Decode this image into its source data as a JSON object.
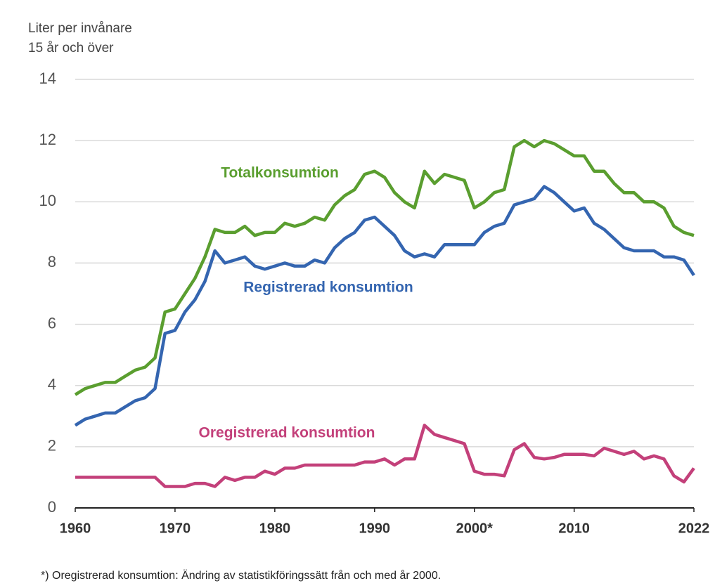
{
  "chart_data": {
    "type": "line",
    "y_label_lines": [
      "Liter per invånare",
      "15 år och över"
    ],
    "footnote": "*) Oregistrerad konsumtion: Ändring av statistikföringssätt från och med år 2000.",
    "x": [
      1960,
      1961,
      1962,
      1963,
      1964,
      1965,
      1966,
      1967,
      1968,
      1969,
      1970,
      1971,
      1972,
      1973,
      1974,
      1975,
      1976,
      1977,
      1978,
      1979,
      1980,
      1981,
      1982,
      1983,
      1984,
      1985,
      1986,
      1987,
      1988,
      1989,
      1990,
      1991,
      1992,
      1993,
      1994,
      1995,
      1996,
      1997,
      1998,
      1999,
      2000,
      2001,
      2002,
      2003,
      2004,
      2005,
      2006,
      2007,
      2008,
      2009,
      2010,
      2011,
      2012,
      2013,
      2014,
      2015,
      2016,
      2017,
      2018,
      2019,
      2020,
      2021,
      2022
    ],
    "series": [
      {
        "name": "Totalkonsumtion",
        "color": "#5a9e2f",
        "values": [
          3.7,
          3.9,
          4.0,
          4.1,
          4.1,
          4.3,
          4.5,
          4.6,
          4.9,
          6.4,
          6.5,
          7.0,
          7.5,
          8.2,
          9.1,
          9.0,
          9.0,
          9.2,
          8.9,
          9.0,
          9.0,
          9.3,
          9.2,
          9.3,
          9.5,
          9.4,
          9.9,
          10.2,
          10.4,
          10.9,
          11.0,
          10.8,
          10.3,
          10.0,
          9.8,
          11.0,
          10.6,
          10.9,
          10.8,
          10.7,
          9.8,
          10.0,
          10.3,
          10.4,
          11.8,
          12.0,
          11.8,
          12.0,
          11.9,
          11.7,
          11.5,
          11.5,
          11.0,
          11.0,
          10.6,
          10.3,
          10.3,
          10.0,
          10.0,
          9.8,
          9.2,
          9.0,
          8.9
        ]
      },
      {
        "name": "Registrerad konsumtion",
        "color": "#3465b0",
        "values": [
          2.7,
          2.9,
          3.0,
          3.1,
          3.1,
          3.3,
          3.5,
          3.6,
          3.9,
          5.7,
          5.8,
          6.4,
          6.8,
          7.4,
          8.4,
          8.0,
          8.1,
          8.2,
          7.9,
          7.8,
          7.9,
          8.0,
          7.9,
          7.9,
          8.1,
          8.0,
          8.5,
          8.8,
          9.0,
          9.4,
          9.5,
          9.2,
          8.9,
          8.4,
          8.2,
          8.3,
          8.2,
          8.6,
          8.6,
          8.6,
          8.6,
          9.0,
          9.2,
          9.3,
          9.9,
          10.0,
          10.1,
          10.5,
          10.3,
          10.0,
          9.7,
          9.8,
          9.3,
          9.1,
          8.8,
          8.5,
          8.4,
          8.4,
          8.4,
          8.2,
          8.2,
          8.1,
          7.6
        ]
      },
      {
        "name": "Oregistrerad konsumtion",
        "color": "#c3407a",
        "values": [
          1.0,
          1.0,
          1.0,
          1.0,
          1.0,
          1.0,
          1.0,
          1.0,
          1.0,
          0.7,
          0.7,
          0.7,
          0.8,
          0.8,
          0.7,
          1.0,
          0.9,
          1.0,
          1.0,
          1.2,
          1.1,
          1.3,
          1.3,
          1.4,
          1.4,
          1.4,
          1.4,
          1.4,
          1.4,
          1.5,
          1.5,
          1.6,
          1.4,
          1.6,
          1.6,
          2.7,
          2.4,
          2.3,
          2.2,
          2.1,
          1.2,
          1.1,
          1.1,
          1.05,
          1.9,
          2.1,
          1.65,
          1.6,
          1.65,
          1.75,
          1.75,
          1.75,
          1.7,
          1.95,
          1.85,
          1.75,
          1.85,
          1.6,
          1.7,
          1.6,
          1.05,
          0.85,
          1.3
        ]
      }
    ],
    "xlim": [
      1960,
      2022
    ],
    "xticks": [
      1960,
      1970,
      1980,
      1990,
      {
        "value": 2000,
        "label": "2000*"
      },
      2010,
      2022
    ],
    "ylim": [
      0,
      14
    ],
    "yticks": [
      0,
      2,
      4,
      6,
      8,
      10,
      12,
      14
    ],
    "grid": true
  }
}
